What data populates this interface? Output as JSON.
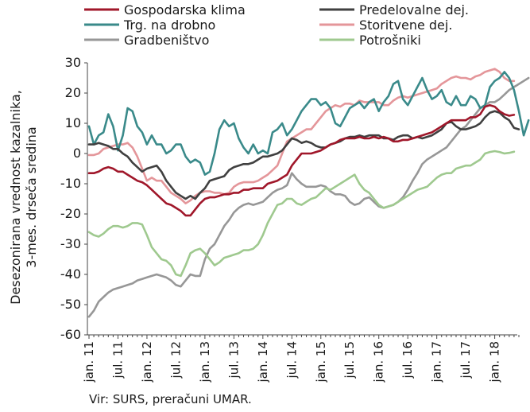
{
  "chart_data": {
    "type": "line",
    "ylabel_lines": [
      "Desezonirana vrednost kazalnika,",
      "3-mes. drseča sredina"
    ],
    "ylim": [
      -60,
      30
    ],
    "yticks": [
      30,
      20,
      10,
      0,
      -10,
      -20,
      -30,
      -40,
      -50,
      -60
    ],
    "grid": false,
    "legend_position": "top",
    "x_tick_labels": [
      "jan. 11",
      "jul. 11",
      "jan. 12",
      "jul. 12",
      "jan. 13",
      "jul. 13",
      "jan. 14",
      "jul. 14",
      "jan. 15",
      "jul. 15",
      "jan. 16",
      "jul. 16",
      "jan. 17",
      "jul. 17",
      "jan. 18"
    ],
    "x_start": "2011-01",
    "series": [
      {
        "name": "Gospodarska klima",
        "color": "#a0172a",
        "values": [
          -6.5,
          -6.5,
          -6,
          -5,
          -4.5,
          -5,
          -6,
          -6,
          -7,
          -8,
          -9,
          -9.5,
          -10.5,
          -12,
          -13.5,
          -15,
          -16.5,
          -17,
          -18,
          -19,
          -20.5,
          -20.5,
          -18.5,
          -16.5,
          -15,
          -14.5,
          -14.5,
          -14,
          -13.5,
          -13.5,
          -13,
          -13,
          -12,
          -12,
          -11.5,
          -11.5,
          -11.5,
          -10,
          -9.5,
          -9,
          -8,
          -7,
          -4,
          -2,
          0,
          0,
          0,
          0.5,
          1,
          2,
          3,
          3.5,
          4.5,
          5,
          5,
          5,
          5.5,
          5,
          5,
          5.5,
          5,
          5.5,
          5,
          4,
          4,
          4.5,
          4.5,
          5,
          5.5,
          6,
          6.5,
          7,
          8,
          9,
          10,
          11,
          11,
          11,
          11,
          12,
          12,
          13,
          15.5,
          16,
          15.5,
          14,
          13,
          12.5,
          12.8
        ]
      },
      {
        "name": "Predelovalne dej.",
        "color": "#404040",
        "values": [
          3,
          3,
          3.5,
          3,
          2.5,
          1.5,
          1.5,
          0,
          -1,
          -3,
          -4.5,
          -6,
          -5,
          -4.5,
          -4,
          -6,
          -9,
          -11,
          -13,
          -14,
          -15,
          -14,
          -15,
          -13,
          -11.5,
          -9,
          -8.5,
          -8,
          -7.5,
          -5.5,
          -4.5,
          -4,
          -3.5,
          -3.5,
          -3,
          -2,
          -1,
          -1,
          -0.5,
          0,
          1,
          3,
          5,
          4.5,
          3.5,
          4,
          3.5,
          2.5,
          2,
          2,
          3,
          3.5,
          4,
          5,
          5.5,
          5.5,
          6,
          5.5,
          6,
          6,
          6,
          5,
          5,
          4.5,
          5.5,
          6,
          6,
          5,
          5.5,
          5,
          5.5,
          6,
          7,
          8,
          10,
          10.5,
          9,
          8,
          8,
          8.5,
          9,
          10,
          12,
          13.5,
          14,
          13.5,
          12,
          11,
          8.5,
          8
        ]
      },
      {
        "name": "Trg. na drobno",
        "color": "#3a8a8a",
        "values": [
          9,
          3,
          6,
          7,
          13,
          9,
          1,
          6,
          15,
          14,
          9,
          7,
          3,
          6,
          3,
          3,
          0,
          1,
          3,
          3,
          -1,
          -3,
          -2,
          -3,
          -7,
          -6,
          0,
          8,
          11,
          9,
          10,
          5,
          2,
          0,
          3,
          0,
          1,
          0,
          7,
          8,
          10,
          6,
          8,
          11,
          14,
          16,
          18,
          18,
          16,
          17,
          15,
          10,
          9,
          12,
          15,
          16,
          17,
          15,
          17,
          18,
          14,
          17,
          19,
          23,
          24,
          18,
          16,
          19,
          22,
          25,
          21,
          18,
          19,
          21,
          17,
          16,
          19,
          16,
          16,
          19,
          18,
          15,
          16,
          22,
          24,
          25,
          27,
          25,
          21,
          14,
          6,
          11
        ]
      },
      {
        "name": "Storitvene dej.",
        "color": "#e4969a",
        "values": [
          -0.5,
          -0.5,
          0,
          1.5,
          2,
          2.5,
          3,
          3,
          3.5,
          2,
          -1,
          -5,
          -9,
          -8,
          -9,
          -9,
          -11,
          -13,
          -14,
          -15,
          -16.5,
          -15.5,
          -14,
          -13,
          -12.5,
          -12.5,
          -13,
          -13,
          -13.5,
          -13,
          -11,
          -10,
          -9.5,
          -9.5,
          -9.5,
          -9,
          -8,
          -7,
          -5.5,
          -4,
          0,
          4,
          5,
          6,
          7,
          8,
          8,
          10,
          12,
          14,
          15,
          16,
          15.5,
          16.5,
          16.5,
          16,
          17.5,
          17,
          17,
          17,
          17,
          16,
          16,
          17.5,
          18.5,
          19,
          18.5,
          19,
          19.5,
          20,
          20.5,
          21,
          21.5,
          23,
          24,
          25,
          25.5,
          25,
          25,
          24.5,
          25.5,
          26,
          27,
          27.5,
          28,
          27,
          25,
          24,
          24
        ]
      },
      {
        "name": "Gradbeništvo",
        "color": "#979797",
        "values": [
          -54,
          -52,
          -49,
          -47.5,
          -46,
          -45,
          -44.5,
          -44,
          -43.5,
          -43,
          -42,
          -41.5,
          -41,
          -40.5,
          -40,
          -40.5,
          -41,
          -42,
          -43.5,
          -44,
          -42,
          -40,
          -40.5,
          -40.5,
          -35,
          -31.5,
          -30,
          -27,
          -24,
          -22,
          -19.5,
          -18,
          -17,
          -16.5,
          -17,
          -16.5,
          -16,
          -14.5,
          -13,
          -12,
          -11.5,
          -10.5,
          -6.5,
          -8.5,
          -10,
          -11,
          -11,
          -11,
          -10.5,
          -11,
          -12.5,
          -13.5,
          -13.5,
          -14,
          -16,
          -17,
          -16.5,
          -15,
          -14.5,
          -16,
          -17.5,
          -18,
          -17.5,
          -17,
          -16,
          -14.5,
          -12,
          -9,
          -6.5,
          -3.5,
          -2,
          -1,
          0,
          1,
          2,
          4,
          6,
          8,
          9,
          11,
          13,
          15,
          16,
          17,
          17,
          18,
          19.5,
          21,
          22,
          23,
          24,
          25
        ]
      },
      {
        "name": "Potrošniki",
        "color": "#9fc98f",
        "values": [
          -26,
          -27,
          -27.5,
          -26.5,
          -25,
          -24,
          -24,
          -24.5,
          -24,
          -23,
          -23,
          -23.5,
          -27,
          -31,
          -33,
          -35,
          -35.5,
          -37,
          -40,
          -40.5,
          -37,
          -33,
          -32,
          -31.5,
          -33,
          -35,
          -37,
          -36,
          -34.5,
          -34,
          -33.5,
          -33,
          -32,
          -32,
          -31.5,
          -30,
          -27,
          -23,
          -20,
          -17,
          -16.5,
          -15,
          -15,
          -16.5,
          -17,
          -16,
          -15,
          -14.5,
          -13,
          -11.5,
          -12,
          -11,
          -10,
          -9,
          -8,
          -7,
          -10,
          -12,
          -13,
          -15,
          -17,
          -18,
          -17.5,
          -17,
          -16,
          -15,
          -14,
          -13,
          -12,
          -11.5,
          -11,
          -9.5,
          -8,
          -7,
          -6.5,
          -6.5,
          -5,
          -4.5,
          -4,
          -4,
          -3,
          -2,
          0,
          0.5,
          0.8,
          0.5,
          0,
          0.2,
          0.6
        ]
      }
    ]
  },
  "legend": [
    {
      "label": "Gospodarska klima",
      "color": "#a0172a"
    },
    {
      "label": "Predelovalne dej.",
      "color": "#404040"
    },
    {
      "label": "Trg. na drobno",
      "color": "#3a8a8a"
    },
    {
      "label": "Storitvene dej.",
      "color": "#e4969a"
    },
    {
      "label": "Gradbeništvo",
      "color": "#979797"
    },
    {
      "label": "Potrošniki",
      "color": "#9fc98f"
    }
  ],
  "source_note": "Vir: SURS, preračuni UMAR."
}
